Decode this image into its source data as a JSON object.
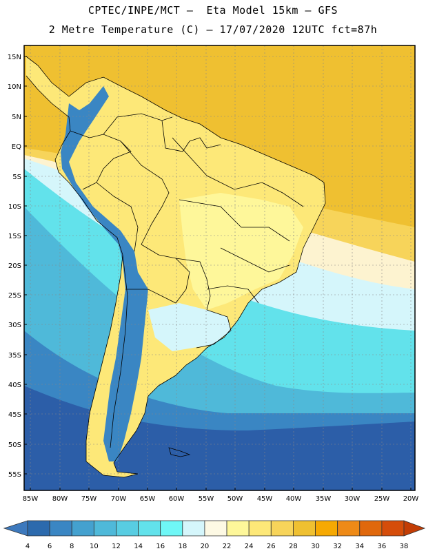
{
  "title_line1": "CPTEC/INPE/MCT –  Eta Model 15km – GFS",
  "title_line2": "2 Metre Temperature (C) – 17/07/2020 12UTC fct=87h",
  "lat_labels": [
    "15N",
    "10N",
    "5N",
    "EQ",
    "5S",
    "10S",
    "15S",
    "20S",
    "25S",
    "30S",
    "35S",
    "40S",
    "45S",
    "50S",
    "55S"
  ],
  "lon_labels": [
    "85W",
    "80W",
    "75W",
    "70W",
    "65W",
    "60W",
    "55W",
    "50W",
    "45W",
    "40W",
    "35W",
    "30W",
    "25W",
    "20W"
  ],
  "colorbar": {
    "ticks": [
      "4",
      "6",
      "8",
      "10",
      "12",
      "14",
      "16",
      "18",
      "20",
      "22",
      "24",
      "26",
      "28",
      "30",
      "32",
      "34",
      "36",
      "38"
    ],
    "colors": [
      "#3d79bd",
      "#2c6aad",
      "#3a86c3",
      "#44a1cf",
      "#4fb9d9",
      "#58cde2",
      "#62e2eb",
      "#6ff7f6",
      "#d5f6fb",
      "#fdf9e4",
      "#fef79a",
      "#fde878",
      "#f7d45a",
      "#efc031",
      "#f6a902",
      "#ee8a17",
      "#e0680c",
      "#d54d0a",
      "#c33d05"
    ]
  },
  "map_colors": {
    "ocean_south": "#2c5ea8",
    "ocean_mid": "#3a86c3",
    "ocean_cool": "#4fb9d9",
    "ocean_cyan": "#62e2eb",
    "ocean_light": "#d5f6fb",
    "ocean_cream": "#fdf3d0",
    "ocean_warm": "#f7d45a",
    "ocean_hot": "#efc031",
    "land_warm": "#fde878",
    "land_cool": "#fef79a",
    "andes": "#3a86c3",
    "grid": "#888888",
    "border": "#000000"
  }
}
